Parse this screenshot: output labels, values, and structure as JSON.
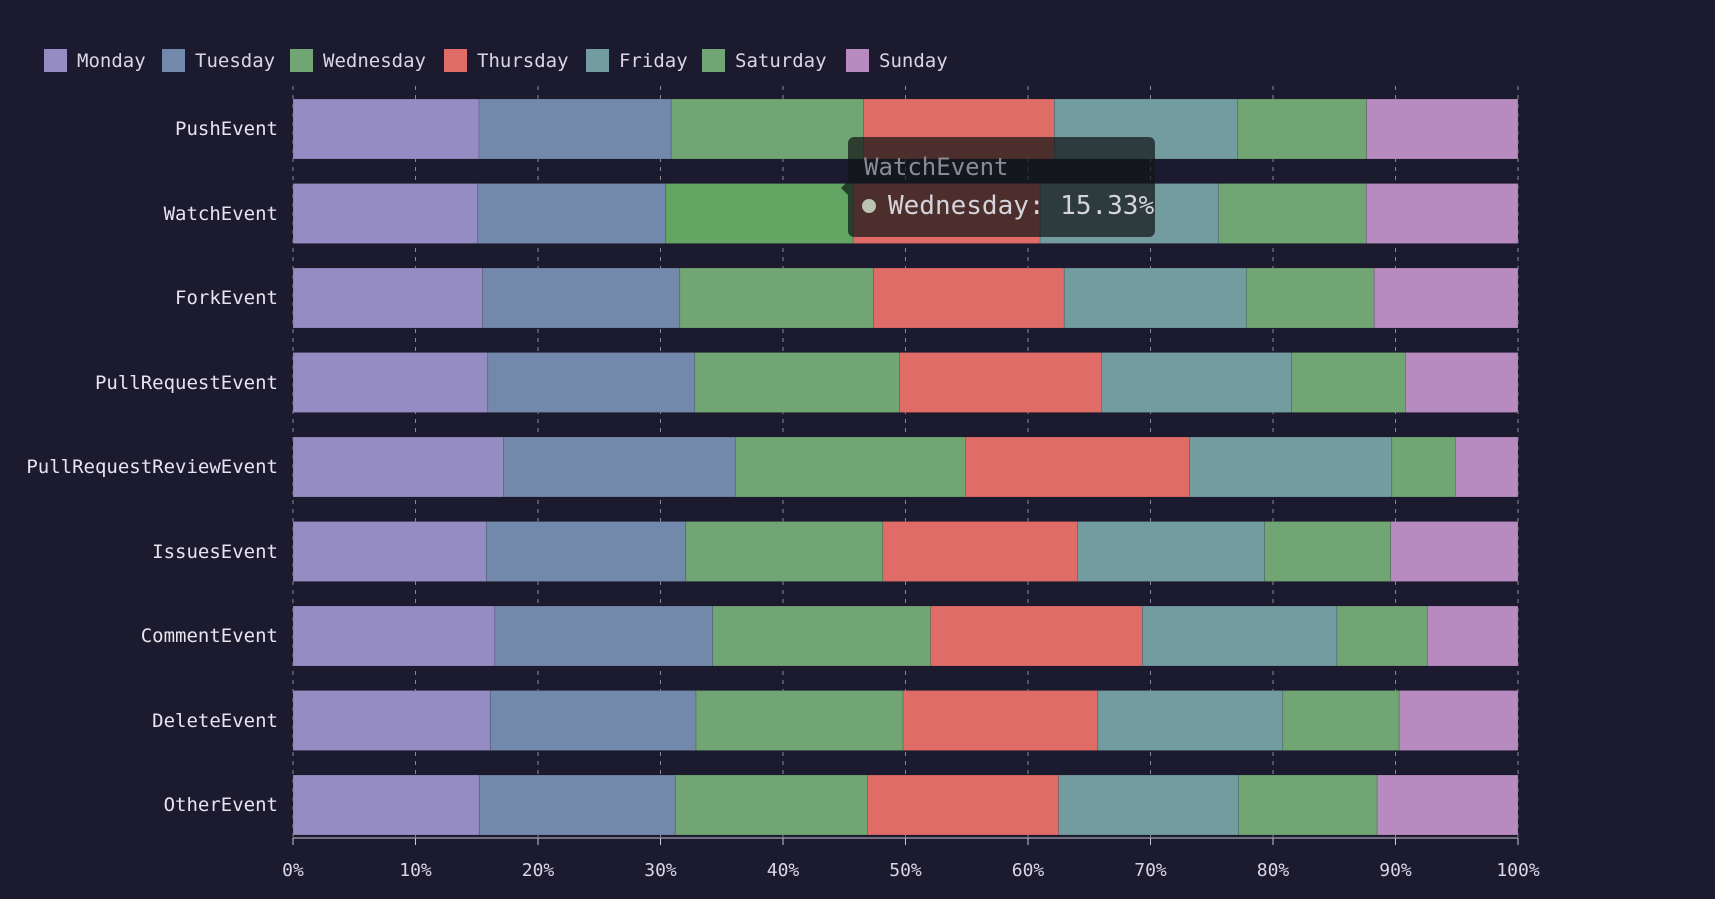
{
  "chart_data": {
    "type": "bar",
    "orientation": "horizontal",
    "stacked": true,
    "normalized": "percent",
    "categories": [
      "PushEvent",
      "WatchEvent",
      "ForkEvent",
      "PullRequestEvent",
      "PullRequestReviewEvent",
      "IssuesEvent",
      "CommentEvent",
      "DeleteEvent",
      "OtherEvent"
    ],
    "series": [
      {
        "name": "Monday",
        "color": "#968cc4",
        "values": [
          15.0,
          15.1,
          15.3,
          15.9,
          17.2,
          15.8,
          16.5,
          16.1,
          15.2
        ]
      },
      {
        "name": "Tuesday",
        "color": "#7389ab",
        "values": [
          15.5,
          15.4,
          15.9,
          16.9,
          18.9,
          16.3,
          17.8,
          16.8,
          16.0
        ]
      },
      {
        "name": "Wednesday",
        "color": "#72a574",
        "values": [
          15.5,
          15.33,
          15.6,
          16.7,
          18.8,
          16.1,
          17.8,
          16.9,
          15.7
        ]
      },
      {
        "name": "Thursday",
        "color": "#e06c67",
        "values": [
          15.4,
          15.3,
          15.4,
          16.5,
          18.3,
          15.9,
          17.3,
          15.9,
          15.6
        ]
      },
      {
        "name": "Friday",
        "color": "#739ca1",
        "values": [
          14.8,
          14.6,
          14.7,
          15.5,
          16.5,
          15.3,
          15.9,
          15.1,
          14.7
        ]
      },
      {
        "name": "Saturday",
        "color": "#72a574",
        "values": [
          10.4,
          12.1,
          10.3,
          9.3,
          5.2,
          10.3,
          7.4,
          9.5,
          11.3
        ]
      },
      {
        "name": "Sunday",
        "color": "#b78bc0",
        "values": [
          12.2,
          12.4,
          11.6,
          9.2,
          5.1,
          10.4,
          7.4,
          9.7,
          11.5
        ]
      }
    ],
    "xlim": [
      0,
      100
    ],
    "xticks": [
      "0%",
      "10%",
      "20%",
      "30%",
      "40%",
      "50%",
      "60%",
      "70%",
      "80%",
      "90%",
      "100%"
    ],
    "grid": "vertical-dashed",
    "legend_position": "top-left",
    "highlight": {
      "category": "WatchEvent",
      "series": "Wednesday",
      "color": "#63a663"
    }
  },
  "tooltip": {
    "title": "WatchEvent",
    "label": "Wednesday: 15.33%"
  }
}
